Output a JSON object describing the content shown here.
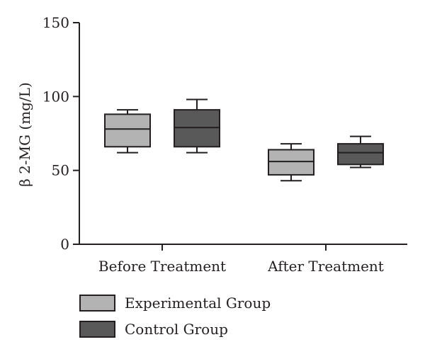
{
  "chart_data": {
    "type": "box",
    "ylabel": "β 2-MG (mg/L)",
    "xlabel": "",
    "ylim": [
      0,
      150
    ],
    "yticks": [
      0,
      50,
      100,
      150
    ],
    "categories": [
      "Before Treatment",
      "After Treatment"
    ],
    "legend_position": "bottom-left",
    "series": [
      {
        "name": "Experimental Group",
        "color": "#b3b3b3",
        "boxes": [
          {
            "min": 62,
            "q1": 66,
            "median": 78,
            "q3": 88,
            "max": 91
          },
          {
            "min": 43,
            "q1": 47,
            "median": 56,
            "q3": 64,
            "max": 68
          }
        ]
      },
      {
        "name": "Control Group",
        "color": "#595959",
        "boxes": [
          {
            "min": 62,
            "q1": 66,
            "median": 79,
            "q3": 91,
            "max": 98
          },
          {
            "min": 52,
            "q1": 54,
            "median": 62,
            "q3": 68,
            "max": 73
          }
        ]
      }
    ]
  }
}
